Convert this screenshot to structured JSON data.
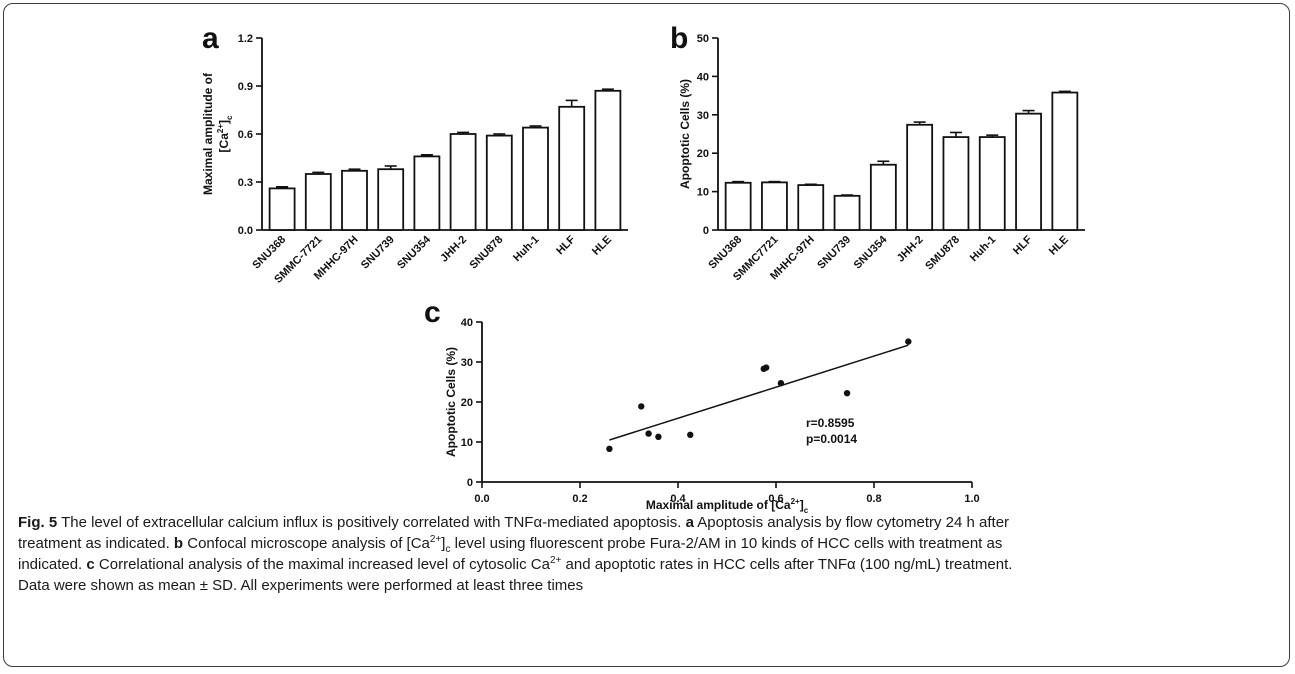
{
  "panels": [
    {
      "letter": "a",
      "chart_data": {
        "type": "bar",
        "ylabel": "Maximal amplitude of [Ca2+]c",
        "ylabel_parts": [
          "Maximal amplitude of",
          "[Ca",
          "2+",
          "]",
          "c"
        ],
        "ylim": [
          0,
          1.2
        ],
        "yticks": [
          "0.0",
          "0.3",
          "0.6",
          "0.9",
          "1.2"
        ],
        "categories": [
          "SNU368",
          "SMMC-7721",
          "MHHC-97H",
          "SNU739",
          "SNU354",
          "JHH-2",
          "SNU878",
          "Huh-1",
          "HLF",
          "HLE"
        ],
        "values": [
          0.26,
          0.35,
          0.37,
          0.38,
          0.46,
          0.6,
          0.59,
          0.64,
          0.77,
          0.87
        ],
        "errors": [
          0.01,
          0.01,
          0.01,
          0.02,
          0.01,
          0.01,
          0.01,
          0.01,
          0.04,
          0.01
        ]
      }
    },
    {
      "letter": "b",
      "chart_data": {
        "type": "bar",
        "ylabel": "Apoptotic Cells (%)",
        "ylim": [
          0,
          50
        ],
        "yticks": [
          "0",
          "10",
          "20",
          "30",
          "40",
          "50"
        ],
        "categories": [
          "SNU368",
          "SMMC7721",
          "MHHC-97H",
          "SNU739",
          "SNU354",
          "JHH-2",
          "SMU878",
          "Huh-1",
          "HLF",
          "HLE"
        ],
        "values": [
          12.3,
          12.4,
          11.7,
          8.9,
          17.0,
          27.4,
          24.2,
          24.2,
          30.3,
          35.8
        ],
        "errors": [
          0.3,
          0.2,
          0.2,
          0.2,
          0.9,
          0.7,
          1.2,
          0.5,
          0.8,
          0.3
        ]
      }
    },
    {
      "letter": "c",
      "chart_data": {
        "type": "scatter",
        "xlabel": "Maximal amplitude of [Ca2+]c",
        "xlabel_parts": [
          "Maximal amplitude of [Ca",
          "2+",
          "]",
          "c"
        ],
        "ylabel": "Apoptotic Cells (%)",
        "xlim": [
          0,
          1.0
        ],
        "ylim": [
          0,
          40
        ],
        "xticks": [
          "0.0",
          "0.2",
          "0.4",
          "0.6",
          "0.8",
          "1.0"
        ],
        "yticks": [
          "0",
          "10",
          "20",
          "30",
          "40"
        ],
        "points": [
          {
            "x": 0.26,
            "y": 8.3
          },
          {
            "x": 0.325,
            "y": 18.9
          },
          {
            "x": 0.34,
            "y": 12.1
          },
          {
            "x": 0.36,
            "y": 11.3
          },
          {
            "x": 0.425,
            "y": 11.8
          },
          {
            "x": 0.575,
            "y": 28.3
          },
          {
            "x": 0.58,
            "y": 28.6
          },
          {
            "x": 0.61,
            "y": 24.7
          },
          {
            "x": 0.745,
            "y": 22.2
          },
          {
            "x": 0.87,
            "y": 35.1
          }
        ],
        "fit_line": {
          "x": [
            0.26,
            0.87
          ],
          "y": [
            10.5,
            34.2
          ]
        },
        "annotations": [
          "r=0.8595",
          "p=0.0014"
        ]
      }
    }
  ],
  "caption": {
    "line1": [
      {
        "t": "Fig. 5",
        "b": true
      },
      {
        "t": " The level of extracellular calcium influx is positively correlated with TNFα-mediated apoptosis. ",
        "b": false
      },
      {
        "t": "a",
        "b": true
      },
      {
        "t": " Apoptosis analysis by flow cytometry 24 h after",
        "b": false
      }
    ],
    "line2": [
      {
        "t": "treatment as indicated. ",
        "b": false
      },
      {
        "t": "b",
        "b": true
      },
      {
        "t": " Confocal microscope analysis of [Ca",
        "b": false
      },
      {
        "t": "2+",
        "b": false,
        "sup": true
      },
      {
        "t": "]",
        "b": false
      },
      {
        "t": "c",
        "b": false,
        "sub": true
      },
      {
        "t": " level using fluorescent probe Fura-2/AM in 10 kinds of HCC cells with treatment as",
        "b": false
      }
    ],
    "line3": [
      {
        "t": "indicated. ",
        "b": false
      },
      {
        "t": "c",
        "b": true
      },
      {
        "t": " Correlational analysis of the maximal increased level of cytosolic Ca",
        "b": false
      },
      {
        "t": "2+",
        "b": false,
        "sup": true
      },
      {
        "t": " and apoptotic rates in HCC cells after TNFα (100 ng/mL) treatment.",
        "b": false
      }
    ],
    "line4": [
      {
        "t": "Data were shown as mean ± SD. All experiments were performed at least three times",
        "b": false
      }
    ]
  }
}
